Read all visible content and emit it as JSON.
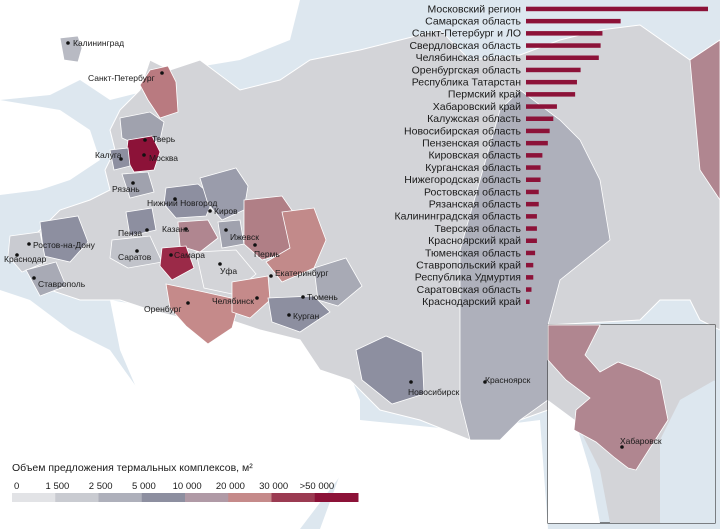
{
  "colors": {
    "sea": "#dde7ef",
    "land": "#ffffff",
    "russia_base": "#d3d4d8",
    "ramp": [
      "#e2e3e6",
      "#c9cbd1",
      "#aeb0bb",
      "#8d8fa0",
      "#b09aa6",
      "#c58a8a",
      "#9b3b52",
      "#8c1238"
    ],
    "bar": "#8c1238",
    "inset_border": "#3a3a3a"
  },
  "bar_list": {
    "items": [
      {
        "label": "Московский регион",
        "value": 100
      },
      {
        "label": "Самарская область",
        "value": 52
      },
      {
        "label": "Санкт-Петербург и ЛО",
        "value": 42
      },
      {
        "label": "Свердловская область",
        "value": 41
      },
      {
        "label": "Челябинская область",
        "value": 40
      },
      {
        "label": "Оренбургская область",
        "value": 30
      },
      {
        "label": "Республика Татарстан",
        "value": 28
      },
      {
        "label": "Пермский край",
        "value": 27
      },
      {
        "label": "Хабаровский край",
        "value": 17
      },
      {
        "label": "Калужская область",
        "value": 15
      },
      {
        "label": "Новосибирская область",
        "value": 13
      },
      {
        "label": "Пензенская область",
        "value": 12
      },
      {
        "label": "Кировская область",
        "value": 9
      },
      {
        "label": "Курганская область",
        "value": 8
      },
      {
        "label": "Нижегородская область",
        "value": 8
      },
      {
        "label": "Ростовская область",
        "value": 7
      },
      {
        "label": "Рязанская область",
        "value": 7
      },
      {
        "label": "Калининградская область",
        "value": 6
      },
      {
        "label": "Тверская область",
        "value": 6
      },
      {
        "label": "Красноярский край",
        "value": 6
      },
      {
        "label": "Тюменская область",
        "value": 5
      },
      {
        "label": "Ставропольский край",
        "value": 4
      },
      {
        "label": "Республика Удмуртия",
        "value": 4
      },
      {
        "label": "Саратовская область",
        "value": 3
      },
      {
        "label": "Краснодарский край",
        "value": 2
      }
    ]
  },
  "cities": [
    "Калининград",
    "Санкт-Петербург",
    "Тверь",
    "Калуга",
    "Москва",
    "Рязань",
    "Нижний Новгород",
    "Киров",
    "Пенза",
    "Казань",
    "Ижевск",
    "Пермь",
    "Ростов-на-Дону",
    "Краснодар",
    "Ставрополь",
    "Саратов",
    "Самара",
    "Уфа",
    "Екатеринбург",
    "Оренбург",
    "Челябинск",
    "Тюмень",
    "Курган",
    "Новосибирск",
    "Красноярск",
    "Хабаровск"
  ],
  "legend": {
    "title": "Объем предложения термальных комплексов, м²",
    "ticks": [
      "0",
      "1 500",
      "2 500",
      "5 000",
      "10 000",
      "20 000",
      "30 000",
      ">50 000"
    ]
  }
}
